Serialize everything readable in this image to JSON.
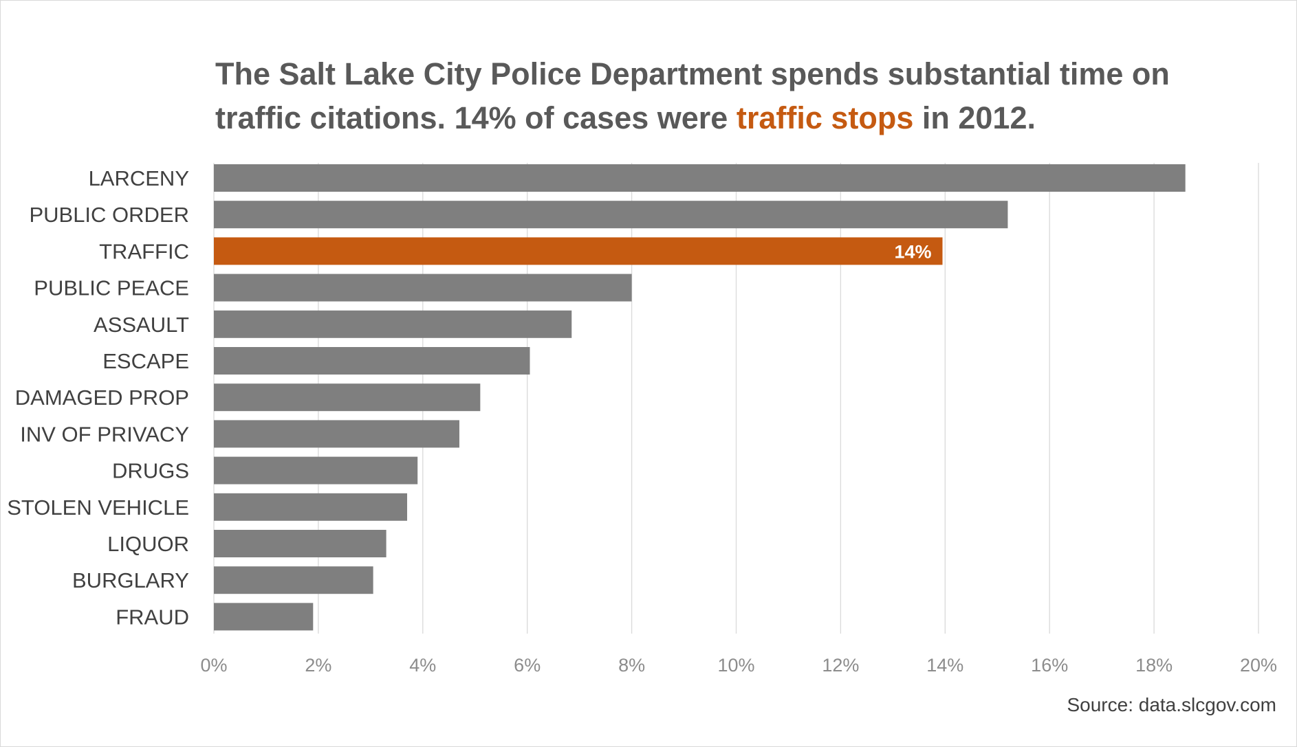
{
  "title": {
    "part1": "The Salt Lake City Police Department spends substantial time on traffic citations. 14% of cases were ",
    "highlight": "traffic stops",
    "part2": " in 2012."
  },
  "source": "Source: data.slcgov.com",
  "colors": {
    "bar": "#7f7f7f",
    "highlight": "#c55a11",
    "grid": "#d9d9d9",
    "category_text": "#404040",
    "tick_text": "#8c8c8c",
    "title_text": "#595959"
  },
  "chart_data": {
    "type": "bar",
    "orientation": "horizontal",
    "categories": [
      "LARCENY",
      "PUBLIC ORDER",
      "TRAFFIC",
      "PUBLIC PEACE",
      "ASSAULT",
      "ESCAPE",
      "DAMAGED PROP",
      "INV OF PRIVACY",
      "DRUGS",
      "STOLEN VEHICLE",
      "LIQUOR",
      "BURGLARY",
      "FRAUD"
    ],
    "values": [
      18.6,
      15.2,
      13.95,
      8.0,
      6.85,
      6.05,
      5.1,
      4.7,
      3.9,
      3.7,
      3.3,
      3.05,
      1.9
    ],
    "highlight_index": 2,
    "data_labels": [
      {
        "index": 2,
        "text": "14%"
      }
    ],
    "xlim": [
      0,
      20
    ],
    "xticks": [
      0,
      2,
      4,
      6,
      8,
      10,
      12,
      14,
      16,
      18,
      20
    ],
    "xtick_labels": [
      "0%",
      "2%",
      "4%",
      "6%",
      "8%",
      "10%",
      "12%",
      "14%",
      "16%",
      "18%",
      "20%"
    ],
    "xlabel": "",
    "ylabel": "",
    "grid": "vertical",
    "legend": "none"
  }
}
